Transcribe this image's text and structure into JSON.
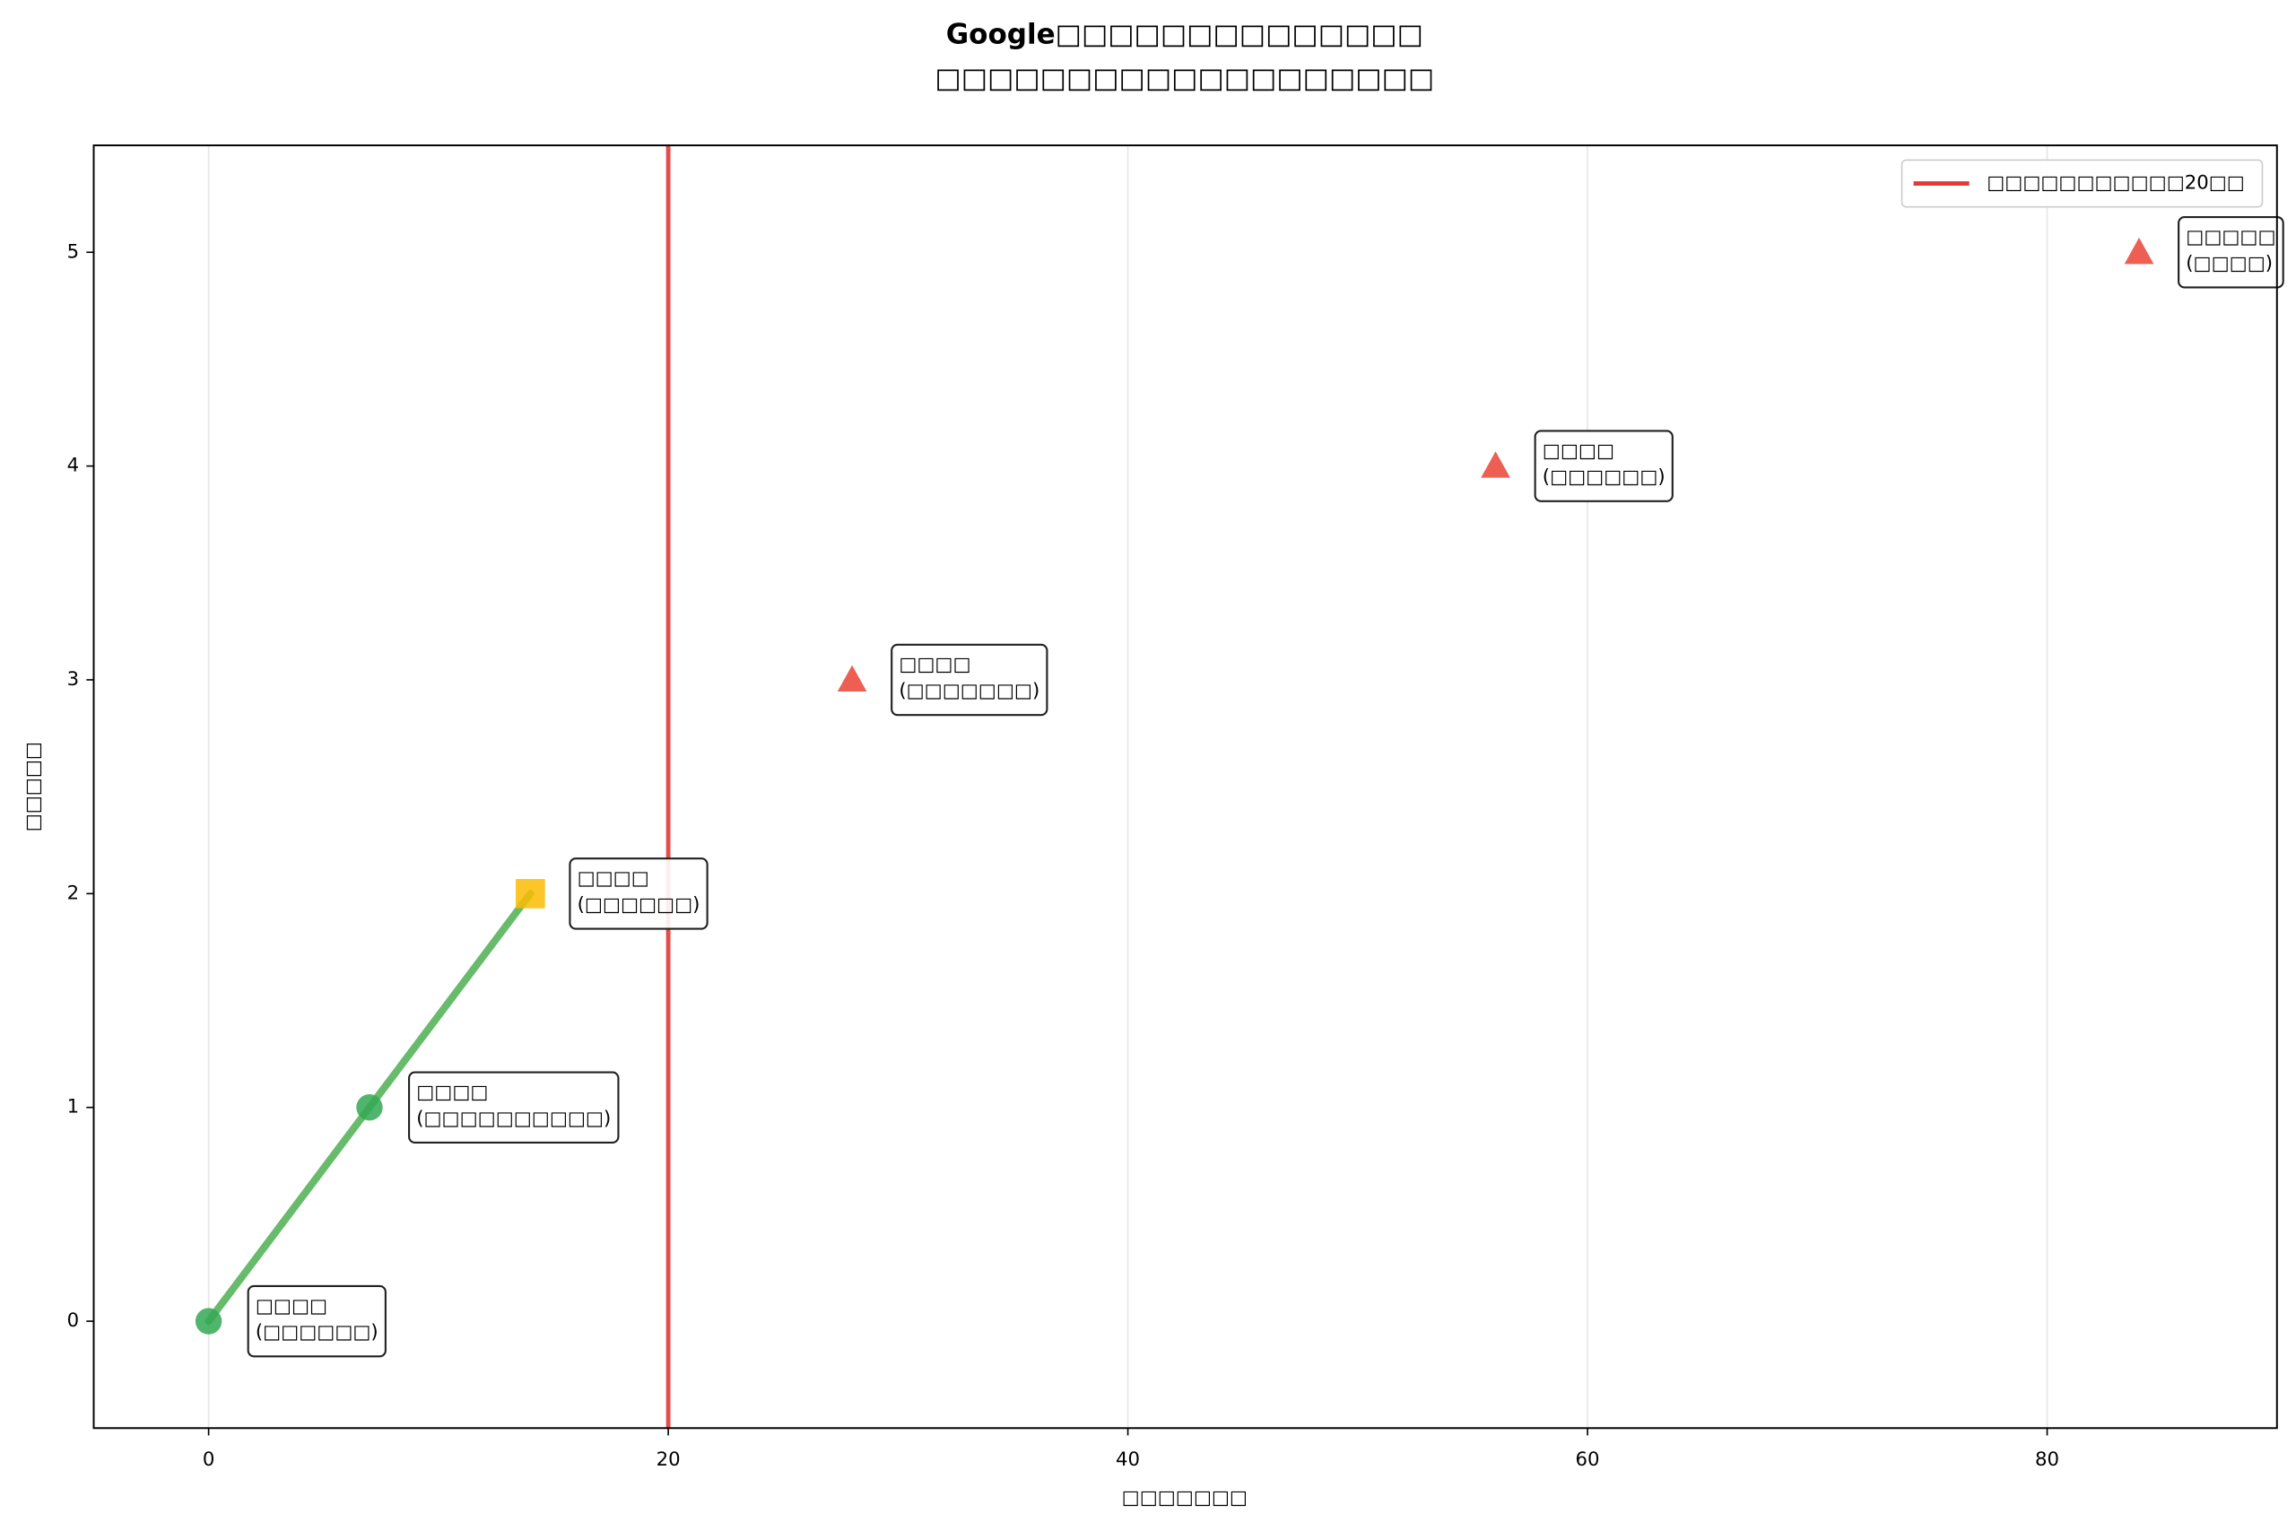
{
  "chart_data": {
    "type": "scatter",
    "title": [
      "Google□□□□□□□□□□□□□□",
      "□□□□□□□□□□□□□□□□□□□"
    ],
    "x_label": "□□□□□□□",
    "y_label": "□□□□□",
    "xlim": [
      -5,
      90
    ],
    "ylim": [
      -0.5,
      5.5
    ],
    "xticks": [
      0,
      20,
      40,
      60,
      80
    ],
    "yticks": [
      0,
      1,
      2,
      3,
      4,
      5
    ],
    "grid": "x",
    "legend": "upper right",
    "points": {
      "x": [
        0,
        7,
        14,
        28,
        56,
        84
      ],
      "values": [
        0,
        1,
        2,
        3,
        4,
        5
      ],
      "colors": [
        "#34a853",
        "#34a853",
        "#fbbc04",
        "#ea4335",
        "#ea4335",
        "#ea4335"
      ],
      "markers": [
        "circle",
        "circle",
        "square",
        "triangle",
        "triangle",
        "triangle"
      ],
      "labels": [
        [
          "□□□□",
          "(□□□□□□)"
        ],
        [
          "□□□□",
          "(□□□□□□□□□□)"
        ],
        [
          "□□□□",
          "(□□□□□□)"
        ],
        [
          "□□□□",
          "(□□□□□□□)"
        ],
        [
          "□□□□",
          "(□□□□□□)"
        ],
        [
          "□□□□□",
          "(□□□□)"
        ]
      ]
    },
    "trend_line": {
      "x": [
        0,
        7,
        14
      ],
      "values": [
        0,
        1,
        2
      ],
      "color": "#4caf50"
    },
    "threshold": {
      "x": 20,
      "label": "□□□□□□□□□□□20□□",
      "color": "#e53935"
    }
  }
}
